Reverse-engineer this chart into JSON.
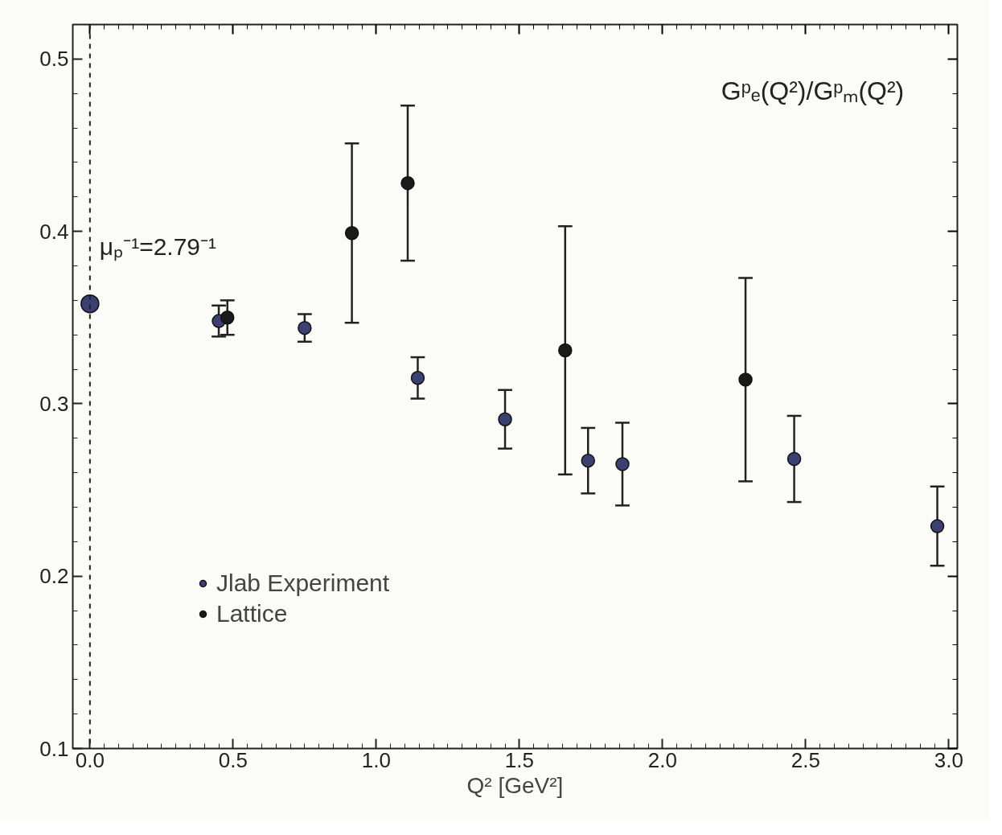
{
  "chart_data": {
    "type": "scatter",
    "title": "Gᵖₑ(Q²)/Gᵖₘ(Q²)",
    "xlabel": "Q² [GeV²]",
    "xlim": [
      -0.06,
      3.03
    ],
    "xticks": [
      {
        "value": 0,
        "label": "0.0"
      },
      0.5,
      {
        "value": 1,
        "label": "1.0"
      },
      1.5,
      {
        "value": 2,
        "label": "2.0"
      },
      2.5,
      {
        "value": 3,
        "label": "3.0"
      }
    ],
    "ylim": [
      0.1,
      0.52
    ],
    "yticks": [
      0.1,
      0.2,
      0.3,
      0.4,
      0.5
    ],
    "grid": false,
    "legend": "bottom left",
    "marker": "circle",
    "ref_lines": [
      {
        "axis": "x",
        "value": 0,
        "line_style": "dashed",
        "color": "#222222"
      }
    ],
    "annotations": [
      {
        "text": "μₚ⁻¹=2.79⁻¹",
        "x": 0,
        "y": 0.358
      }
    ],
    "series": [
      {
        "name": "Jlab Experiment",
        "color": "#3a4070",
        "x": [
          0.45,
          0.75,
          1.145,
          1.45,
          1.74,
          1.86,
          2.46,
          2.96
        ],
        "values": [
          0.348,
          0.344,
          0.315,
          0.291,
          0.267,
          0.265,
          0.268,
          0.229
        ],
        "errors": [
          0.009,
          0.008,
          0.012,
          0.017,
          0.019,
          0.024,
          0.025,
          0.023
        ]
      },
      {
        "name": "Lattice",
        "color": "#1a1a1a",
        "x": [
          0.48,
          0.915,
          1.11,
          1.66,
          2.29
        ],
        "values": [
          0.35,
          0.399,
          0.428,
          0.331,
          0.314
        ],
        "errors": [
          0.01,
          0.052,
          0.045,
          0.072,
          0.059
        ]
      },
      {
        "color": "#3a4070",
        "x": [
          0
        ],
        "values": [
          0.358
        ]
      }
    ]
  }
}
